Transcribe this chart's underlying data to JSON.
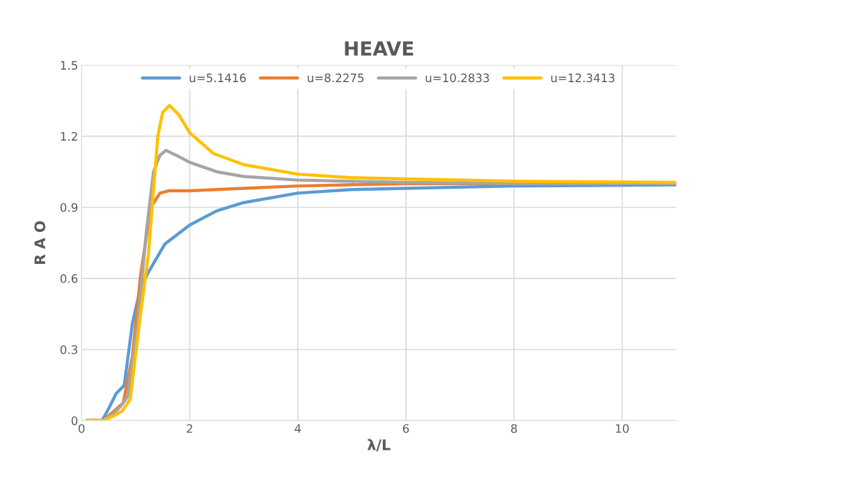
{
  "chart_data": {
    "type": "line",
    "title": "HEAVE",
    "xlabel": "λ/L",
    "ylabel": "R A O",
    "xlim": [
      0,
      11
    ],
    "xticks": [
      0,
      2,
      4,
      6,
      8,
      10
    ],
    "ylim": [
      0,
      1.5
    ],
    "yticks": [
      0,
      0.3,
      0.6,
      0.9,
      1.2,
      1.5
    ],
    "grid": true,
    "legend": "top",
    "line_style": "solid",
    "marker": "none",
    "series": [
      {
        "name": "u=5.1416",
        "color": "#5b9bd5",
        "x": [
          0.1,
          0.38,
          0.5,
          0.64,
          0.79,
          0.94,
          1.08,
          1.22,
          1.54,
          2.0,
          2.5,
          3,
          4,
          5,
          6,
          8,
          11
        ],
        "values": [
          0,
          0,
          0.05,
          0.114,
          0.149,
          0.41,
          0.55,
          0.62,
          0.745,
          0.825,
          0.885,
          0.92,
          0.96,
          0.975,
          0.98,
          0.99,
          0.995
        ]
      },
      {
        "name": "u=8.2275",
        "color": "#ed7d31",
        "x": [
          0.1,
          0.4,
          0.6,
          0.77,
          0.94,
          1.09,
          1.28,
          1.45,
          1.62,
          2.0,
          3,
          4,
          6,
          8,
          11
        ],
        "values": [
          0,
          0,
          0.04,
          0.075,
          0.27,
          0.61,
          0.9,
          0.96,
          0.97,
          0.97,
          0.98,
          0.99,
          1.0,
          1.0,
          1.0
        ]
      },
      {
        "name": "u=10.2833",
        "color": "#a5a5a5",
        "x": [
          0.1,
          0.4,
          0.6,
          0.72,
          0.85,
          1.04,
          1.2,
          1.33,
          1.45,
          1.56,
          1.75,
          2.0,
          2.5,
          3,
          4,
          6,
          8,
          11
        ],
        "values": [
          0,
          0,
          0.03,
          0.06,
          0.1,
          0.41,
          0.8,
          1.05,
          1.12,
          1.14,
          1.12,
          1.09,
          1.05,
          1.03,
          1.015,
          1.005,
          1.0,
          1.0
        ]
      },
      {
        "name": "u=12.3413",
        "color": "#ffc000",
        "x": [
          0.1,
          0.4,
          0.6,
          0.75,
          0.9,
          1.07,
          1.24,
          1.41,
          1.5,
          1.63,
          1.8,
          2.0,
          2.44,
          3,
          4,
          5,
          6,
          8,
          11
        ],
        "values": [
          0,
          0,
          0.02,
          0.04,
          0.09,
          0.41,
          0.71,
          1.2,
          1.3,
          1.33,
          1.29,
          1.215,
          1.127,
          1.08,
          1.04,
          1.025,
          1.02,
          1.01,
          1.005
        ]
      }
    ]
  }
}
